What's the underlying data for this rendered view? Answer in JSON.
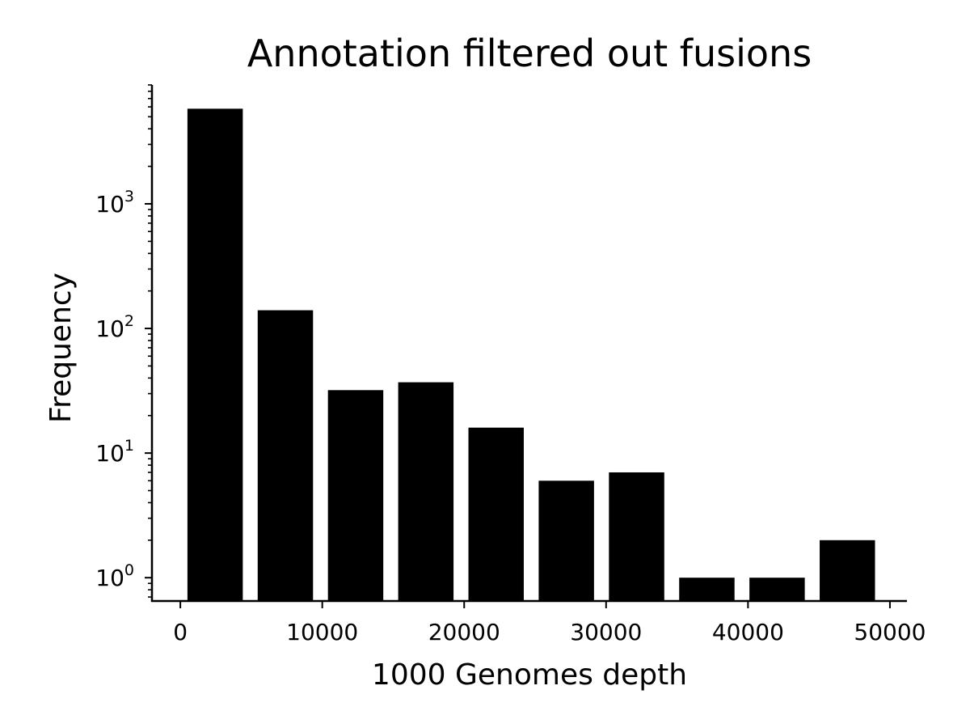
{
  "chart_data": {
    "type": "bar",
    "title": "Annotation filtered out fusions",
    "xlabel": "1000 Genomes depth",
    "ylabel": "Frequency",
    "y_scale": "log",
    "xlim": [
      -2000,
      51200
    ],
    "ylim": [
      0.65,
      9000
    ],
    "bar_color": "#000000",
    "grid": false,
    "legend": "none",
    "x_ticks": [
      0,
      10000,
      20000,
      30000,
      40000,
      50000
    ],
    "x_tick_labels": [
      "0",
      "10000",
      "20000",
      "30000",
      "40000",
      "50000"
    ],
    "y_ticks": [
      {
        "value": 1,
        "base": "10",
        "exp": "0"
      },
      {
        "value": 10,
        "base": "10",
        "exp": "1"
      },
      {
        "value": 100,
        "base": "10",
        "exp": "2"
      },
      {
        "value": 1000,
        "base": "10",
        "exp": "3"
      }
    ],
    "bins": [
      {
        "x0": 500,
        "x1": 4400,
        "value": 5800
      },
      {
        "x0": 5450,
        "x1": 9350,
        "value": 140
      },
      {
        "x0": 10400,
        "x1": 14300,
        "value": 32
      },
      {
        "x0": 15350,
        "x1": 19250,
        "value": 37
      },
      {
        "x0": 20300,
        "x1": 24200,
        "value": 16
      },
      {
        "x0": 25250,
        "x1": 29150,
        "value": 6
      },
      {
        "x0": 30200,
        "x1": 34100,
        "value": 7
      },
      {
        "x0": 35150,
        "x1": 39050,
        "value": 1
      },
      {
        "x0": 40100,
        "x1": 44000,
        "value": 1
      },
      {
        "x0": 45050,
        "x1": 48950,
        "value": 2
      }
    ]
  }
}
